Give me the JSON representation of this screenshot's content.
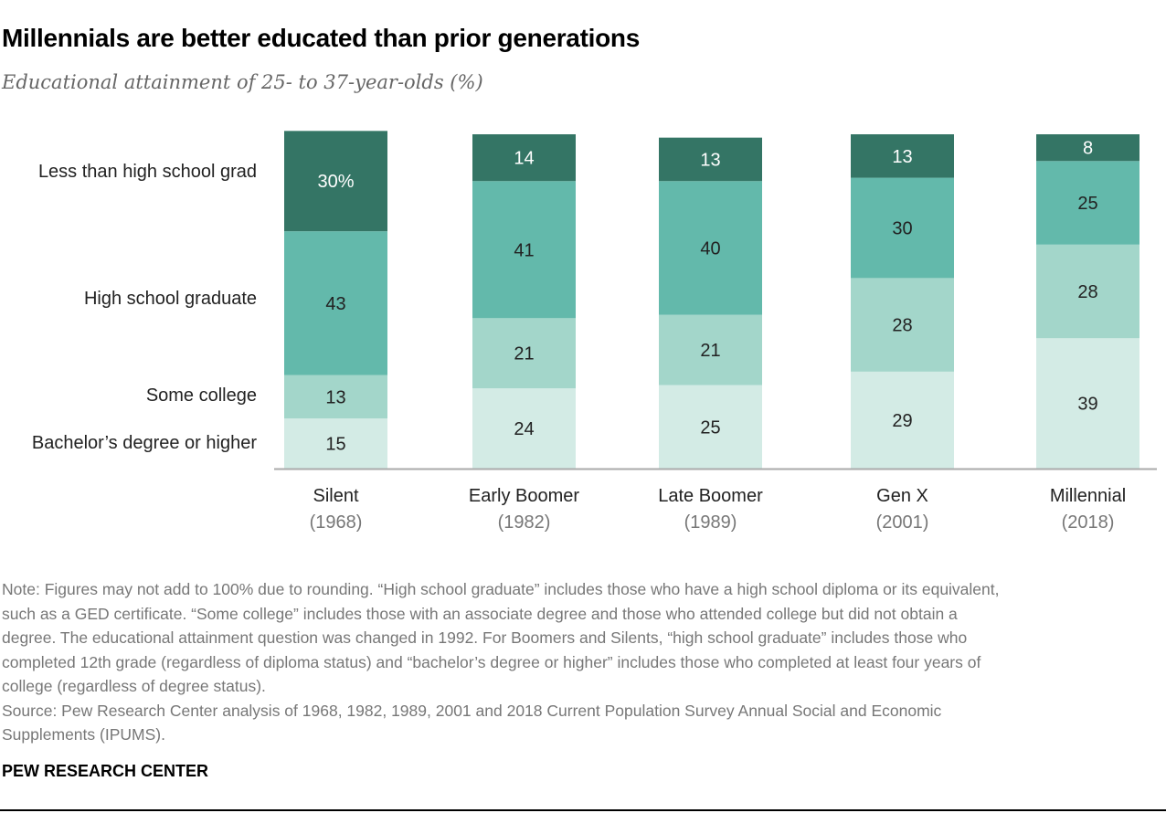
{
  "title": "Millennials are better educated than prior generations",
  "subtitle": "Educational attainment of 25- to 37-year-olds (%)",
  "chart_data": {
    "type": "stacked-bar",
    "categories": [
      "Silent",
      "Early Boomer",
      "Late Boomer",
      "Gen X",
      "Millennial"
    ],
    "category_years": [
      "(1968)",
      "(1982)",
      "(1989)",
      "(2001)",
      "(2018)"
    ],
    "series": [
      {
        "name": "Bachelor’s degree or higher",
        "values": [
          15,
          24,
          25,
          29,
          39
        ],
        "color": "#d3ebe5"
      },
      {
        "name": "Some college",
        "values": [
          13,
          21,
          21,
          28,
          28
        ],
        "color": "#a3d6ca"
      },
      {
        "name": "High school graduate",
        "values": [
          43,
          41,
          40,
          30,
          25
        ],
        "color": "#63b9ab"
      },
      {
        "name": "Less than high school grad",
        "values": [
          30,
          14,
          13,
          13,
          8
        ],
        "color": "#347565"
      }
    ],
    "first_label_suffix": "%",
    "legend_placement": "left",
    "grid": false
  },
  "notes": [
    "Note: Figures may not add to 100% due to rounding. “High school graduate” includes those who have a high school diploma or its equivalent,",
    "such as a GED certificate. “Some college” includes those with an associate degree and those who attended college but did not obtain a",
    "degree. The educational attainment question was changed in 1992. For Boomers and Silents, “high school graduate” includes those who",
    "completed 12th grade (regardless of diploma status) and “bachelor’s degree or higher” includes those who completed at least four years of",
    "college (regardless of degree status).",
    "Source: Pew Research Center analysis of 1968, 1982, 1989, 2001 and 2018 Current Population Survey Annual Social and Economic",
    "Supplements (IPUMS)."
  ],
  "brand": "PEW RESEARCH CENTER"
}
